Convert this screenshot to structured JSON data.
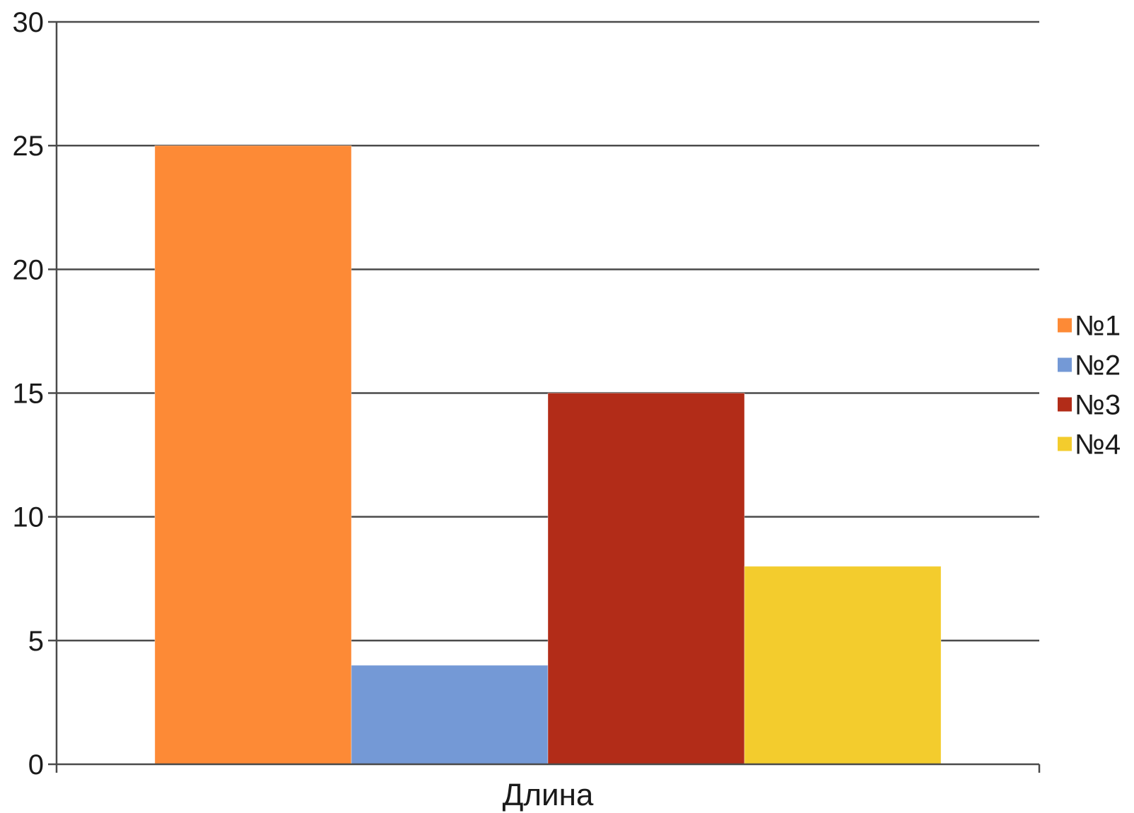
{
  "chart_data": {
    "type": "bar",
    "title": "",
    "xlabel": "",
    "ylabel": "",
    "categories": [
      "Длина"
    ],
    "series": [
      {
        "name": "№1",
        "values": [
          25
        ],
        "color": "#fd8a36"
      },
      {
        "name": "№2",
        "values": [
          4
        ],
        "color": "#7499d6"
      },
      {
        "name": "№3",
        "values": [
          15
        ],
        "color": "#b22c18"
      },
      {
        "name": "№4",
        "values": [
          8
        ],
        "color": "#f3cc2d"
      }
    ],
    "ylim": [
      0,
      30
    ],
    "yticks": [
      "0",
      "5",
      "10",
      "15",
      "20",
      "25",
      "30"
    ],
    "grid": true,
    "legend": "right"
  }
}
